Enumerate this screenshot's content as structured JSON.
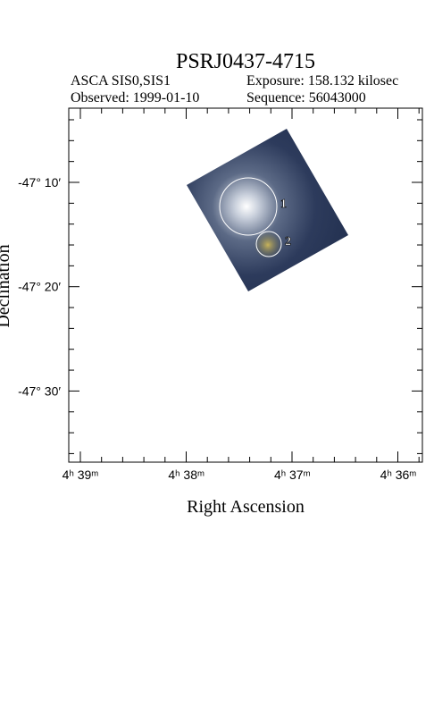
{
  "header": {
    "title": "PSRJ0437-4715",
    "instrument": "ASCA SIS0,SIS1",
    "exposure": "Exposure: 158.132 kilosec",
    "observed": "Observed: 1999-01-10",
    "sequence": "Sequence: 56043000"
  },
  "axes": {
    "x_label": "Right Ascension",
    "y_label": "Declination",
    "x_tick_labels": [
      "4ʰ 39ᵐ",
      "4ʰ 38ᵐ",
      "4ʰ 37ᵐ",
      "4ʰ 36ᵐ"
    ],
    "y_tick_labels": [
      "-47° 10′",
      "-47° 20′",
      "-47° 30′"
    ]
  },
  "regions": [
    {
      "label": "1"
    },
    {
      "label": "2"
    }
  ]
}
